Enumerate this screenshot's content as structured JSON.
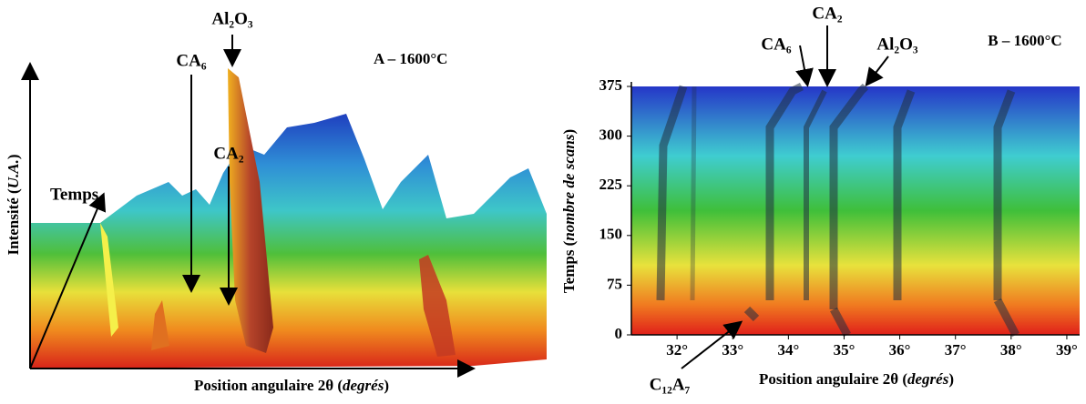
{
  "chart_data": [
    {
      "type": "surface3d",
      "title": "A – 1600°C",
      "xlabel": [
        "Position angulaire 2θ (",
        "degrés",
        ")"
      ],
      "ylabel": [
        "Intensité (",
        "U.A.",
        ")"
      ],
      "annotations": [
        "Temps",
        "CA₆",
        "Al₂O₃",
        "CA₂"
      ]
    },
    {
      "type": "heatmap",
      "title": "B – 1600°C",
      "xlabel": [
        "Position angulaire 2θ (",
        "degrés",
        ")"
      ],
      "ylabel": [
        "Temps (",
        "nombre de scans",
        ")"
      ],
      "annotations": [
        "CA₆",
        "CA₂",
        "Al₂O₃",
        "C₁₂A₇"
      ],
      "xlim": [
        31.18,
        39.23
      ],
      "xticks": [
        {
          "value": 32,
          "label": "32°"
        },
        {
          "value": 33,
          "label": "33°"
        },
        {
          "value": 34,
          "label": "34°"
        },
        {
          "value": 35,
          "label": "35°"
        },
        {
          "value": 36,
          "label": "36°"
        },
        {
          "value": 37,
          "label": "37°"
        },
        {
          "value": 38,
          "label": "38°"
        },
        {
          "value": 39,
          "label": "39°"
        }
      ],
      "ylim": [
        0,
        375
      ],
      "yticks": [
        0,
        75,
        150,
        225,
        300,
        375
      ]
    }
  ]
}
